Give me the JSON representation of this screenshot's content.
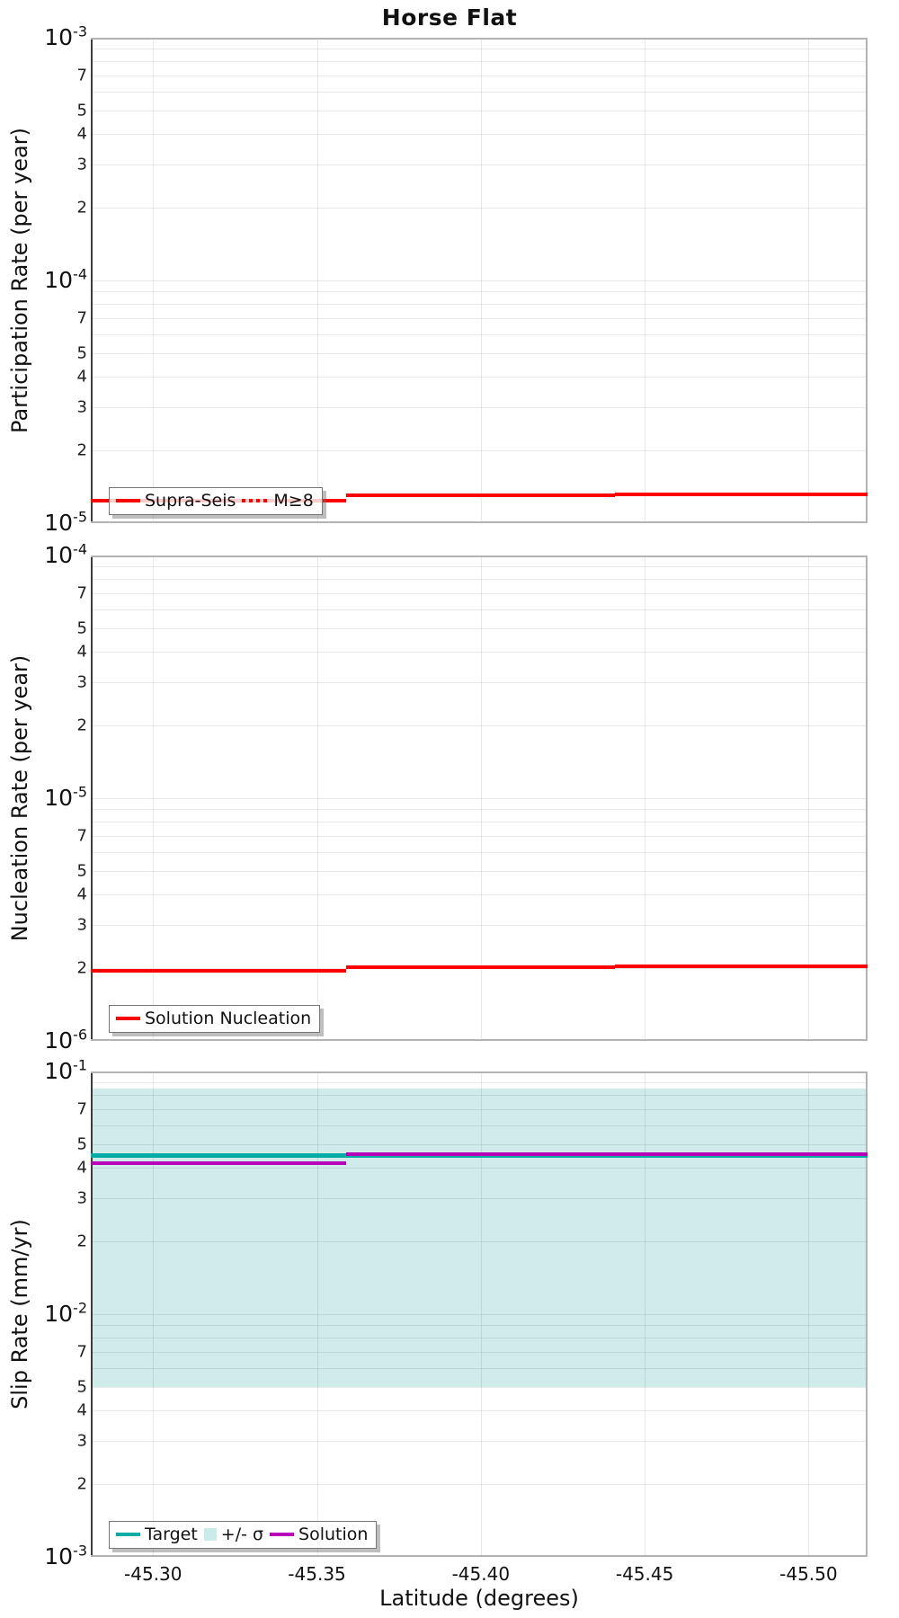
{
  "chart_data": {
    "type": "line",
    "title": "Horse Flat",
    "xlabel": "Latitude (degrees)",
    "x_axis": {
      "label": "Latitude (degrees)",
      "left_value": -45.281,
      "right_value": -45.518,
      "reversed": true,
      "ticks": [
        -45.3,
        -45.35,
        -45.4,
        -45.45,
        -45.5
      ],
      "tick_labels": [
        "-45.30",
        "-45.35",
        "-45.40",
        "-45.45",
        "-45.50"
      ]
    },
    "panels": [
      {
        "name": "participation",
        "ylabel": "Participation Rate (per year)",
        "yscale": "log",
        "ylim": [
          1e-05,
          0.001
        ],
        "y_decades": [
          -3,
          -4,
          -5
        ],
        "minor_tick_labels": [
          7,
          5,
          4,
          3,
          2
        ],
        "grid": true,
        "series": [
          {
            "name": "Supra-Seis",
            "color": "#ff0000",
            "style": "solid",
            "line_width": 4,
            "segments": [
              {
                "from": -45.281,
                "to": -45.359,
                "value": 1.24e-05
              },
              {
                "from": -45.359,
                "to": -45.441,
                "value": 1.3e-05
              },
              {
                "from": -45.441,
                "to": -45.518,
                "value": 1.31e-05
              }
            ]
          },
          {
            "name": "M≥8",
            "color": "#ff0000",
            "style": "dotted",
            "line_width": 4,
            "segments": [
              {
                "from": -45.281,
                "to": -45.359,
                "value": 1.24e-05
              },
              {
                "from": -45.359,
                "to": -45.441,
                "value": 1.3e-05
              },
              {
                "from": -45.441,
                "to": -45.518,
                "value": 1.31e-05
              }
            ]
          }
        ],
        "legend": [
          {
            "label": "Supra-Seis",
            "swatch": "line",
            "color": "#ff0000"
          },
          {
            "label": "M≥8",
            "swatch": "dotted",
            "color": "#ff0000"
          }
        ],
        "legend_position": "bottom-left"
      },
      {
        "name": "nucleation",
        "ylabel": "Nucleation Rate (per year)",
        "yscale": "log",
        "ylim": [
          1e-06,
          0.0001
        ],
        "y_decades": [
          -4,
          -5,
          -6
        ],
        "minor_tick_labels": [
          7,
          5,
          4,
          3,
          2
        ],
        "grid": true,
        "series": [
          {
            "name": "Solution Nucleation",
            "color": "#ff0000",
            "style": "solid",
            "line_width": 4,
            "segments": [
              {
                "from": -45.281,
                "to": -45.359,
                "value": 1.95e-06
              },
              {
                "from": -45.359,
                "to": -45.441,
                "value": 2.02e-06
              },
              {
                "from": -45.441,
                "to": -45.518,
                "value": 2.03e-06
              }
            ]
          }
        ],
        "legend": [
          {
            "label": "Solution Nucleation",
            "swatch": "line",
            "color": "#ff0000"
          }
        ],
        "legend_position": "bottom-left"
      },
      {
        "name": "slip-rate",
        "ylabel": "Slip Rate (mm/yr)",
        "yscale": "log",
        "ylim": [
          0.001,
          0.1
        ],
        "y_decades": [
          -1,
          -2,
          -3
        ],
        "minor_tick_labels": [
          7,
          5,
          4,
          3,
          2
        ],
        "grid": true,
        "band": {
          "name": "+/- σ",
          "low": 0.005,
          "high": 0.085,
          "color": "#cfeceb"
        },
        "series": [
          {
            "name": "Target",
            "color": "#00ada6",
            "style": "solid",
            "line_width": 5,
            "segments": [
              {
                "from": -45.281,
                "to": -45.518,
                "value": 0.045
              }
            ]
          },
          {
            "name": "Solution",
            "color": "#b800b8",
            "style": "solid",
            "line_width": 4,
            "segments": [
              {
                "from": -45.281,
                "to": -45.359,
                "value": 0.042
              },
              {
                "from": -45.359,
                "to": -45.518,
                "value": 0.0455
              }
            ]
          }
        ],
        "legend": [
          {
            "label": "Target",
            "swatch": "line",
            "color": "#00ada6"
          },
          {
            "label": "+/- σ",
            "swatch": "square",
            "color": "#c9ebe9"
          },
          {
            "label": "Solution",
            "swatch": "line",
            "color": "#b800b8"
          }
        ],
        "legend_position": "bottom-left"
      }
    ]
  }
}
